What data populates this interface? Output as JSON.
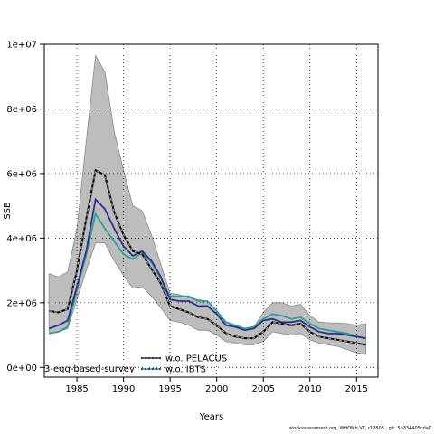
{
  "chart_data": {
    "type": "line",
    "xlabel": "Years",
    "ylabel": "SSB",
    "xlim": [
      1981.5,
      2017.3
    ],
    "ylim": [
      -300000,
      10000000
    ],
    "xticks": [
      1985,
      1990,
      1995,
      2000,
      2005,
      2010,
      2015
    ],
    "yticks": [
      0,
      2000000,
      4000000,
      6000000,
      8000000,
      10000000
    ],
    "ytick_labels": [
      "0e+00",
      "2e+06",
      "4e+06",
      "6e+06",
      "8e+06",
      "1e+07"
    ],
    "grid": true,
    "grid_style": "dotted",
    "x": [
      1982,
      1983,
      1984,
      1985,
      1986,
      1987,
      1988,
      1989,
      1990,
      1991,
      1992,
      1993,
      1994,
      1995,
      1996,
      1997,
      1998,
      1999,
      2000,
      2001,
      2002,
      2003,
      2004,
      2005,
      2006,
      2007,
      2008,
      2009,
      2010,
      2011,
      2012,
      2013,
      2014,
      2015,
      2016
    ],
    "confidence_band": {
      "upper": [
        2900000,
        2800000,
        2950000,
        4300000,
        7000000,
        9650000,
        9150000,
        7300000,
        6100000,
        5000000,
        4850000,
        4100000,
        3200000,
        2300000,
        2250000,
        2150000,
        2100000,
        2050000,
        1750000,
        1400000,
        1300000,
        1150000,
        1250000,
        1700000,
        2000000,
        2000000,
        1900000,
        1950000,
        1600000,
        1400000,
        1380000,
        1370000,
        1350000,
        1300000,
        1350000
      ],
      "lower": [
        1050000,
        1100000,
        1200000,
        2100000,
        3000000,
        3850000,
        3850000,
        3300000,
        2850000,
        2450000,
        2500000,
        2200000,
        1850000,
        1450000,
        1400000,
        1300000,
        1150000,
        1150000,
        1000000,
        800000,
        750000,
        700000,
        700000,
        800000,
        1100000,
        1050000,
        1000000,
        1050000,
        850000,
        750000,
        700000,
        650000,
        550000,
        450000,
        400000
      ]
    },
    "series": [
      {
        "name": "3-egg-based-survey",
        "color": "#000000",
        "style": "dashed-grey",
        "values": [
          1750000,
          1700000,
          1800000,
          3000000,
          4600000,
          6100000,
          5950000,
          4800000,
          4100000,
          3600000,
          3500000,
          3050000,
          2600000,
          1900000,
          1800000,
          1700000,
          1550000,
          1500000,
          1300000,
          1050000,
          950000,
          900000,
          900000,
          1100000,
          1400000,
          1350000,
          1300000,
          1350000,
          1100000,
          950000,
          900000,
          850000,
          800000,
          750000,
          700000
        ]
      },
      {
        "name": "w.o. PELACUS",
        "color": "#2e2f8f",
        "style": "solid",
        "values": [
          1200000,
          1300000,
          1450000,
          2500000,
          3600000,
          5200000,
          4900000,
          4300000,
          3750000,
          3450000,
          3600000,
          3300000,
          2800000,
          2100000,
          2050000,
          2050000,
          1900000,
          1900000,
          1650000,
          1300000,
          1250000,
          1150000,
          1200000,
          1450000,
          1500000,
          1400000,
          1400000,
          1450000,
          1250000,
          1100000,
          1050000,
          1050000,
          1000000,
          950000,
          900000
        ]
      },
      {
        "name": "w.o. IBTS",
        "color": "#2aa198",
        "style": "solid",
        "values": [
          1050000,
          1100000,
          1250000,
          2400000,
          3500000,
          4750000,
          4300000,
          3900000,
          3500000,
          3350000,
          3550000,
          3250000,
          2750000,
          2200000,
          2200000,
          2200000,
          2050000,
          2050000,
          1750000,
          1400000,
          1300000,
          1200000,
          1250000,
          1500000,
          1650000,
          1600000,
          1500000,
          1550000,
          1350000,
          1200000,
          1150000,
          1100000,
          1050000,
          950000,
          900000
        ]
      }
    ]
  },
  "legend": {
    "items": [
      "w.o. PELACUS",
      "w.o. IBTS"
    ],
    "overlay_label": "3-egg-based-survey"
  },
  "footer": "stockassessment.org, WHOMb VT, r12808 , git: 5b334405cda7"
}
